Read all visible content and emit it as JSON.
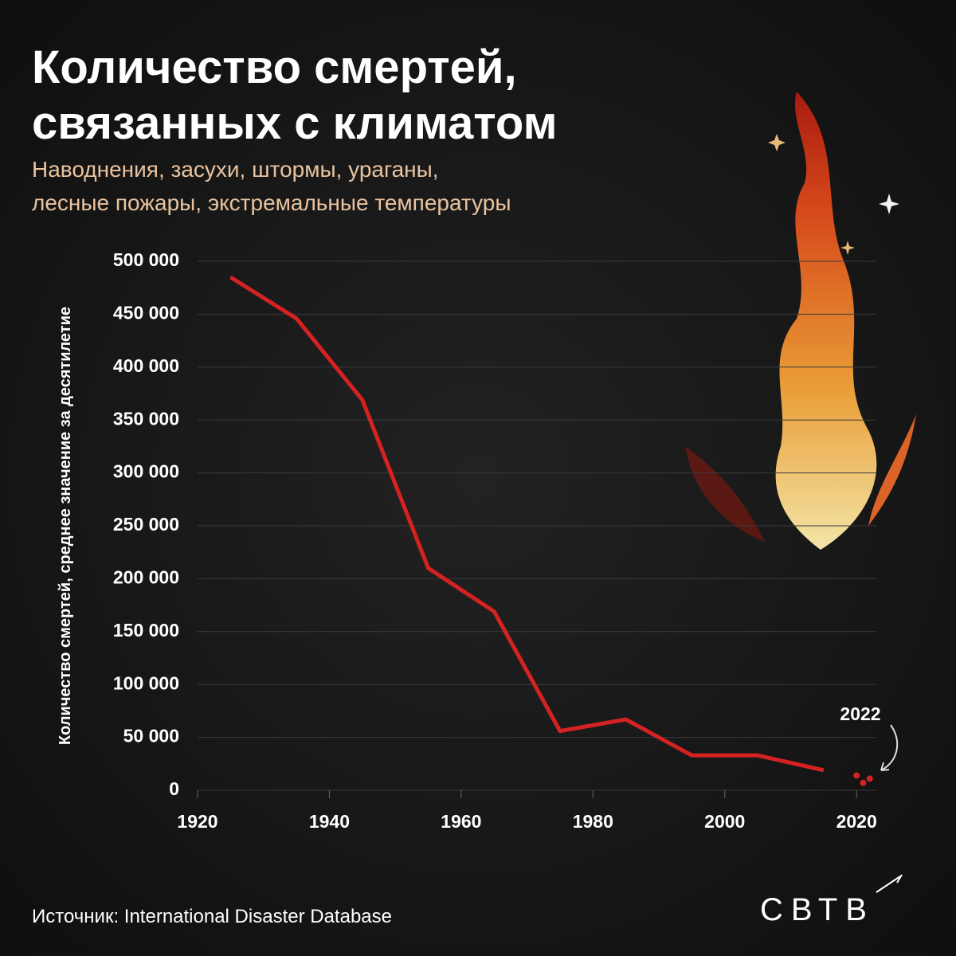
{
  "chart_data": {
    "type": "line",
    "title": "Количество смертей,\nсвязанных с климатом",
    "subtitle": "Наводнения, засухи, штормы, ураганы,\nлесные пожары, экстремальные температуры",
    "y_label": "Количество смертей, среднее значение за десятилетие",
    "source": "Источник: International Disaster Database",
    "brand": "СВТВ",
    "annotation": "2022",
    "xlim": [
      1920,
      2023
    ],
    "xticks": [
      1920,
      1940,
      1960,
      1980,
      2000,
      2020
    ],
    "ylim": [
      0,
      500000
    ],
    "yticks": [
      0,
      {
        "value": 50000,
        "label": "50 000"
      },
      {
        "value": 100000,
        "label": "100 000"
      },
      {
        "value": 150000,
        "label": "150 000"
      },
      {
        "value": 200000,
        "label": "200 000"
      },
      {
        "value": 250000,
        "label": "250 000"
      },
      {
        "value": 300000,
        "label": "300 000"
      },
      {
        "value": 350000,
        "label": "350 000"
      },
      {
        "value": 400000,
        "label": "400 000"
      },
      {
        "value": 450000,
        "label": "450 000"
      },
      {
        "value": 500000,
        "label": "500 000"
      }
    ],
    "grid": true,
    "series": [
      {
        "type": "line",
        "color": "#d42222",
        "x": [
          1925,
          1935,
          1945,
          1955,
          1965,
          1975,
          1985,
          1995,
          2005,
          2015
        ],
        "values": [
          485000,
          446000,
          369000,
          210000,
          169000,
          56000,
          67000,
          33000,
          33000,
          19000
        ]
      },
      {
        "type": "scatter",
        "color": "#d42222",
        "x": [
          2020,
          2021,
          2022
        ],
        "values": [
          14000,
          7000,
          11000
        ]
      }
    ]
  }
}
